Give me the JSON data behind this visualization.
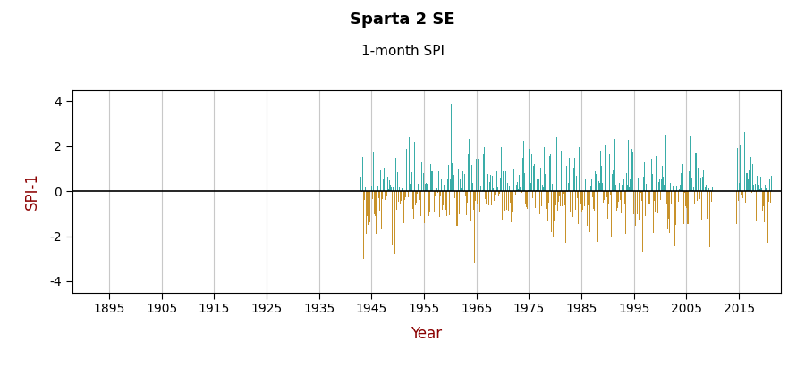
{
  "title": "Sparta 2 SE",
  "subtitle": "1-month SPI",
  "ylabel": "SPI-1",
  "xlabel": "Year",
  "start_year": 1942,
  "start_month": 10,
  "end_year": 2021,
  "end_month": 6,
  "xlim": [
    1888,
    2023
  ],
  "ylim": [
    -4.5,
    4.5
  ],
  "yticks": [
    -4,
    -2,
    0,
    2,
    4
  ],
  "xticks": [
    1895,
    1905,
    1915,
    1925,
    1935,
    1945,
    1955,
    1965,
    1975,
    1985,
    1995,
    2005,
    2015
  ],
  "positive_color": "#3aada8",
  "negative_color": "#c8922a",
  "plot_bg_color": "#ffffff",
  "fig_bg_color": "#ffffff",
  "grid_color": "#c8c8c8",
  "axis_label_color": "#8B0000",
  "tick_label_color": "#8B0000",
  "title_fontsize": 13,
  "subtitle_fontsize": 11,
  "axis_label_fontsize": 12,
  "tick_fontsize": 10,
  "gap_start_year": 2010,
  "gap_end_year": 2014,
  "late_spike_year": 2020,
  "late_spike_month": 5
}
